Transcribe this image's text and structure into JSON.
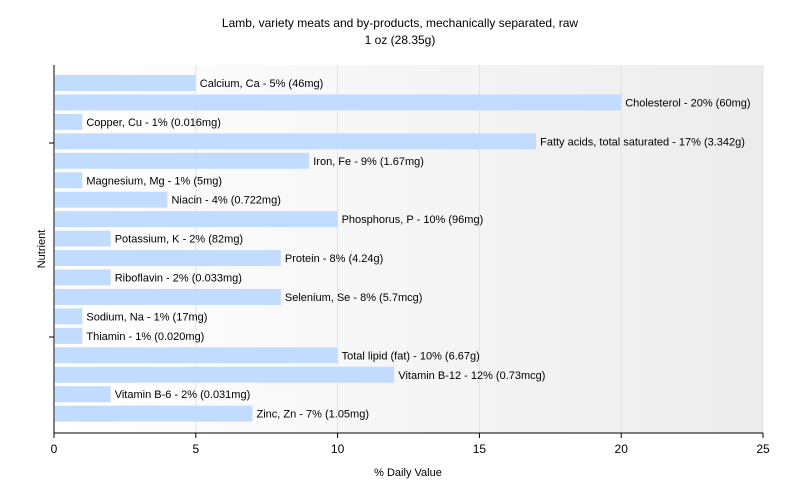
{
  "chart_data": {
    "type": "bar",
    "orientation": "horizontal",
    "title": "Lamb, variety meats and by-products, mechanically separated, raw",
    "subtitle": "1 oz (28.35g)",
    "xlabel": "% Daily Value",
    "ylabel": "Nutrient",
    "xlim": [
      0,
      25
    ],
    "xticks": [
      "0",
      "5",
      "10",
      "15",
      "20",
      "25"
    ],
    "grid": true,
    "bar_color": "#c2dcff",
    "categories": [
      "Calcium, Ca",
      "Cholesterol",
      "Copper, Cu",
      "Fatty acids, total saturated",
      "Iron, Fe",
      "Magnesium, Mg",
      "Niacin",
      "Phosphorus, P",
      "Potassium, K",
      "Protein",
      "Riboflavin",
      "Selenium, Se",
      "Sodium, Na",
      "Thiamin",
      "Total lipid (fat)",
      "Vitamin B-12",
      "Vitamin B-6",
      "Zinc, Zn"
    ],
    "values": [
      5,
      20,
      1,
      17,
      9,
      1,
      4,
      10,
      2,
      8,
      2,
      8,
      1,
      1,
      10,
      12,
      2,
      7
    ],
    "labels": [
      "Calcium, Ca - 5% (46mg)",
      "Cholesterol - 20% (60mg)",
      "Copper, Cu - 1% (0.016mg)",
      "Fatty acids, total saturated - 17% (3.342g)",
      "Iron, Fe - 9% (1.67mg)",
      "Magnesium, Mg - 1% (5mg)",
      "Niacin - 4% (0.722mg)",
      "Phosphorus, P - 10% (96mg)",
      "Potassium, K - 2% (82mg)",
      "Protein - 8% (4.24g)",
      "Riboflavin - 2% (0.033mg)",
      "Selenium, Se - 8% (5.7mcg)",
      "Sodium, Na - 1% (17mg)",
      "Thiamin - 1% (0.020mg)",
      "Total lipid (fat) - 10% (6.67g)",
      "Vitamin B-12 - 12% (0.73mcg)",
      "Vitamin B-6 - 2% (0.031mg)",
      "Zinc, Zn - 7% (1.05mg)"
    ]
  }
}
